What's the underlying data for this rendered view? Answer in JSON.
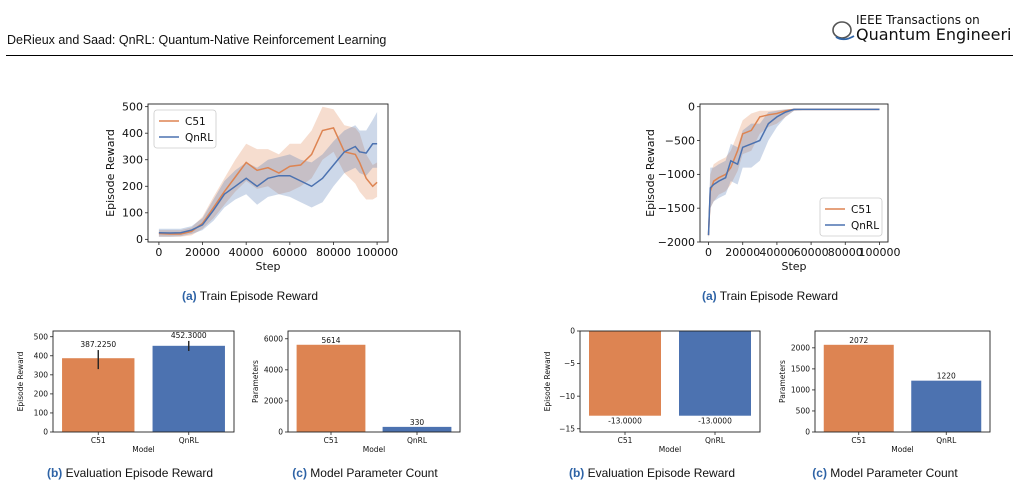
{
  "header": {
    "authors_title": "DeRieux and Saad: QnRL: Quantum-Native Reinforcement Learning",
    "journal_line1": "IEEE Transactions on",
    "journal_line2": "Quantum Engineering"
  },
  "colors": {
    "c51": "#dd8452",
    "qnrl": "#4c72b0",
    "caption_label": "#2e63a6"
  },
  "captions": {
    "left_a": {
      "label": "(a)",
      "text": "Train Episode Reward"
    },
    "left_b": {
      "label": "(b)",
      "text": "Evaluation Episode Reward"
    },
    "left_c": {
      "label": "(c)",
      "text": "Model Parameter Count"
    },
    "right_a": {
      "label": "(a)",
      "text": "Train Episode Reward"
    },
    "right_b": {
      "label": "(b)",
      "text": "Evaluation Episode Reward"
    },
    "right_c": {
      "label": "(c)",
      "text": "Model Parameter Count"
    }
  },
  "chart_data": [
    {
      "id": "left_train",
      "type": "line",
      "xlabel": "Step",
      "ylabel": "Episode Reward",
      "xlim": [
        -5000,
        105000
      ],
      "ylim": [
        -10,
        510
      ],
      "xticks": [
        0,
        20000,
        40000,
        60000,
        80000,
        100000
      ],
      "xtick_labels": [
        "0",
        "20000",
        "40000",
        "60000",
        "80000",
        "100000"
      ],
      "yticks": [
        0,
        100,
        200,
        300,
        400,
        500
      ],
      "ytick_labels": [
        "0",
        "100",
        "200",
        "300",
        "400",
        "500"
      ],
      "legend_position": "top-left",
      "x": [
        0,
        5000,
        10000,
        15000,
        20000,
        25000,
        30000,
        35000,
        40000,
        45000,
        50000,
        55000,
        60000,
        65000,
        70000,
        75000,
        80000,
        85000,
        90000,
        92000,
        95000,
        98000,
        100000
      ],
      "series": [
        {
          "name": "C51",
          "color_key": "c51",
          "values": [
            22,
            20,
            20,
            30,
            60,
            120,
            180,
            235,
            290,
            260,
            270,
            250,
            275,
            280,
            320,
            410,
            420,
            330,
            320,
            290,
            230,
            200,
            215
          ],
          "lower": [
            10,
            10,
            10,
            15,
            40,
            80,
            130,
            180,
            220,
            190,
            200,
            170,
            180,
            200,
            230,
            300,
            330,
            250,
            210,
            180,
            150,
            150,
            160
          ],
          "upper": [
            35,
            35,
            35,
            45,
            85,
            160,
            230,
            300,
            360,
            340,
            340,
            320,
            360,
            360,
            410,
            500,
            490,
            430,
            420,
            400,
            320,
            280,
            290
          ]
        },
        {
          "name": "QnRL",
          "color_key": "qnrl",
          "values": [
            25,
            24,
            25,
            35,
            55,
            110,
            170,
            200,
            230,
            200,
            230,
            240,
            240,
            220,
            200,
            230,
            280,
            330,
            350,
            330,
            325,
            360,
            360
          ],
          "lower": [
            10,
            10,
            12,
            20,
            35,
            70,
            120,
            150,
            170,
            130,
            160,
            170,
            160,
            140,
            120,
            140,
            200,
            250,
            270,
            250,
            240,
            270,
            270
          ],
          "upper": [
            40,
            40,
            40,
            50,
            80,
            150,
            220,
            260,
            290,
            270,
            300,
            310,
            320,
            300,
            290,
            320,
            370,
            410,
            430,
            410,
            410,
            450,
            480
          ]
        }
      ]
    },
    {
      "id": "left_eval",
      "type": "bar",
      "xlabel": "Model",
      "ylabel": "Episode Reward",
      "categories": [
        "C51",
        "QnRL"
      ],
      "values": [
        387.225,
        452.3
      ],
      "value_labels": [
        "387.2250",
        "452.3000"
      ],
      "error": [
        [
          330,
          430
        ],
        [
          425,
          478
        ]
      ],
      "ylim": [
        0,
        530
      ],
      "yticks": [
        0,
        100,
        200,
        300,
        400,
        500
      ],
      "ytick_labels": [
        "0",
        "100",
        "200",
        "300",
        "400",
        "500"
      ]
    },
    {
      "id": "left_params",
      "type": "bar",
      "xlabel": "Model",
      "ylabel": "Parameters",
      "categories": [
        "C51",
        "QnRL"
      ],
      "values": [
        5614,
        330
      ],
      "value_labels": [
        "5614",
        "330"
      ],
      "ylim": [
        0,
        6500
      ],
      "yticks": [
        0,
        2000,
        4000,
        6000
      ],
      "ytick_labels": [
        "0",
        "2000",
        "4000",
        "6000"
      ]
    },
    {
      "id": "right_train",
      "type": "line",
      "xlabel": "Step",
      "ylabel": "Episode Reward",
      "xlim": [
        -5000,
        105000
      ],
      "ylim": [
        -2000,
        40
      ],
      "xticks": [
        0,
        20000,
        40000,
        60000,
        80000,
        100000
      ],
      "xtick_labels": [
        "0",
        "20000",
        "40000",
        "60000",
        "80000",
        "100000"
      ],
      "yticks": [
        0,
        -500,
        -1000,
        -1500,
        -2000
      ],
      "ytick_labels": [
        "0",
        "−500",
        "−1000",
        "−1500",
        "−2000"
      ],
      "legend_position": "bottom-right",
      "x": [
        0,
        1000,
        3000,
        6000,
        10000,
        13000,
        17000,
        20000,
        25000,
        30000,
        35000,
        40000,
        45000,
        50000,
        55000,
        60000,
        70000,
        80000,
        90000,
        100000
      ],
      "series": [
        {
          "name": "C51",
          "color_key": "c51",
          "values": [
            -1900,
            -1250,
            -1100,
            -1050,
            -1000,
            -900,
            -650,
            -400,
            -350,
            -150,
            -120,
            -100,
            -60,
            -40,
            -40,
            -40,
            -40,
            -40,
            -40,
            -40
          ],
          "lower": [
            -1950,
            -1500,
            -1400,
            -1300,
            -1250,
            -1150,
            -950,
            -700,
            -650,
            -400,
            -300,
            -250,
            -150,
            -60,
            -50,
            -50,
            -50,
            -50,
            -50,
            -50
          ],
          "upper": [
            -1700,
            -1000,
            -850,
            -800,
            -750,
            -650,
            -400,
            -200,
            -100,
            -60,
            -60,
            -50,
            -40,
            -30,
            -30,
            -30,
            -30,
            -30,
            -30,
            -30
          ]
        },
        {
          "name": "QnRL",
          "color_key": "qnrl",
          "values": [
            -1900,
            -1200,
            -1150,
            -1100,
            -1050,
            -800,
            -850,
            -600,
            -550,
            -500,
            -250,
            -150,
            -80,
            -40,
            -40,
            -40,
            -40,
            -40,
            -40,
            -40
          ],
          "lower": [
            -1950,
            -1500,
            -1400,
            -1350,
            -1300,
            -1100,
            -1150,
            -900,
            -900,
            -800,
            -500,
            -300,
            -150,
            -60,
            -50,
            -50,
            -50,
            -50,
            -50,
            -50
          ],
          "upper": [
            -1700,
            -900,
            -900,
            -850,
            -800,
            -550,
            -600,
            -350,
            -250,
            -250,
            -80,
            -60,
            -40,
            -30,
            -30,
            -30,
            -30,
            -30,
            -30,
            -30
          ]
        }
      ]
    },
    {
      "id": "right_eval",
      "type": "bar",
      "xlabel": "Model",
      "ylabel": "Episode Reward",
      "categories": [
        "C51",
        "QnRL"
      ],
      "values": [
        -13.0,
        -13.0
      ],
      "value_labels": [
        "-13.0000",
        "-13.0000"
      ],
      "ylim": [
        -15.5,
        0
      ],
      "yticks": [
        0,
        -5,
        -10,
        -15
      ],
      "ytick_labels": [
        "0",
        "−5",
        "−10",
        "−15"
      ]
    },
    {
      "id": "right_params",
      "type": "bar",
      "xlabel": "Model",
      "ylabel": "Parameters",
      "categories": [
        "C51",
        "QnRL"
      ],
      "values": [
        2072,
        1220
      ],
      "value_labels": [
        "2072",
        "1220"
      ],
      "ylim": [
        0,
        2400
      ],
      "yticks": [
        0,
        500,
        1000,
        1500,
        2000
      ],
      "ytick_labels": [
        "0",
        "500",
        "1000",
        "1500",
        "2000"
      ]
    }
  ]
}
